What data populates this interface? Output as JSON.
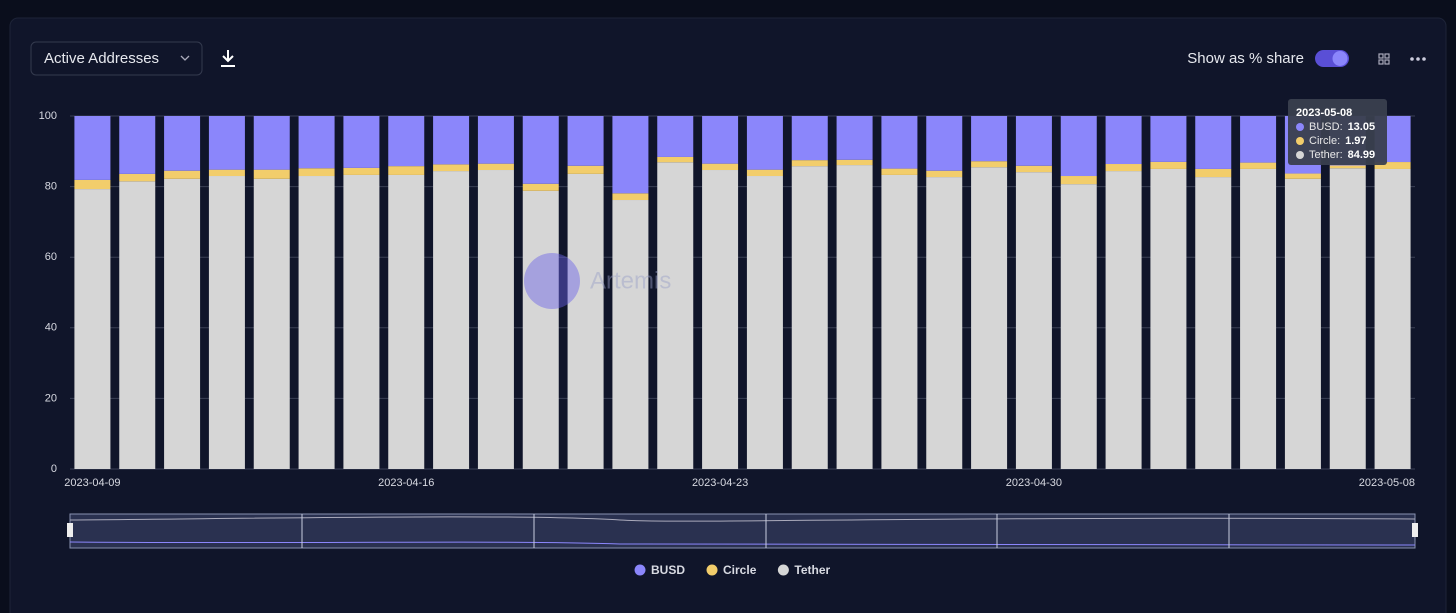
{
  "ui": {
    "metric": "Active Addresses",
    "toggle_label": "Show as % share",
    "watermark": "Artemis"
  },
  "chart_data": {
    "type": "stacked_bar",
    "categories": [
      "2023-04-09",
      null,
      null,
      null,
      null,
      null,
      null,
      "2023-04-16",
      null,
      null,
      null,
      null,
      null,
      null,
      "2023-04-23",
      null,
      null,
      null,
      null,
      null,
      null,
      "2023-04-30",
      null,
      null,
      null,
      null,
      null,
      null,
      null,
      "2023-05-08"
    ],
    "series": [
      {
        "name": "BUSD",
        "color": "#8b86fb",
        "values": [
          18.1,
          16.4,
          15.5,
          15.2,
          15.2,
          14.8,
          14.7,
          14.2,
          13.7,
          13.5,
          19.2,
          14.1,
          21.9,
          11.6,
          13.5,
          15.2,
          12.5,
          12.4,
          14.9,
          15.5,
          12.8,
          14.1,
          17.0,
          13.6,
          13.0,
          15.0,
          13.2,
          16.3,
          14.0,
          13.05
        ]
      },
      {
        "name": "Circle",
        "color": "#f2cd6b",
        "values": [
          2.6,
          2.1,
          2.3,
          1.8,
          2.6,
          2.2,
          2.0,
          2.5,
          1.9,
          1.8,
          2.0,
          2.3,
          1.9,
          1.5,
          1.8,
          1.8,
          1.7,
          1.5,
          1.8,
          1.8,
          1.7,
          1.8,
          2.3,
          2.0,
          2.0,
          2.3,
          1.8,
          1.5,
          0.8,
          1.97
        ]
      },
      {
        "name": "Tether",
        "color": "#d6d6d6",
        "values": [
          79.3,
          81.5,
          82.2,
          83.0,
          82.2,
          83.0,
          83.3,
          83.3,
          84.4,
          84.7,
          78.8,
          83.6,
          76.2,
          86.9,
          84.7,
          83.0,
          85.8,
          86.1,
          83.3,
          82.7,
          85.5,
          84.1,
          80.7,
          84.4,
          85.0,
          82.7,
          85.0,
          82.2,
          85.2,
          84.99
        ]
      }
    ],
    "ylim": [
      0,
      100
    ],
    "yticks": [
      0,
      20,
      40,
      60,
      80,
      100
    ],
    "grid": true,
    "legend": "bottom"
  }
}
